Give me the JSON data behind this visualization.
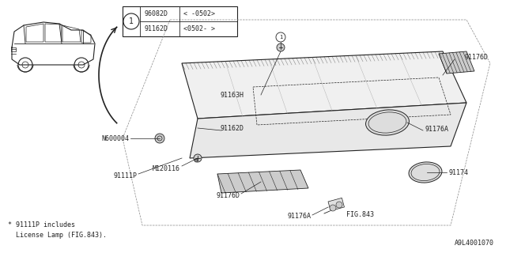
{
  "bg_color": "#ffffff",
  "border_color": "#000000",
  "diagram_color": "#222222",
  "fig_id": "A9L4001070",
  "footnote": "* 91111P includes\n  License Lamp (FIG.843).",
  "legend_items": [
    {
      "num": "1",
      "part1": "96082D",
      "range1": "< -0502>",
      "part2": "91162D",
      "range2": "<0502- >"
    }
  ],
  "part_labels": [
    "91163H",
    "91162D",
    "N600004",
    "M120116",
    "91111P",
    "91176D",
    "91176A",
    "91176D",
    "91174",
    "91176A",
    "FIG.843"
  ]
}
